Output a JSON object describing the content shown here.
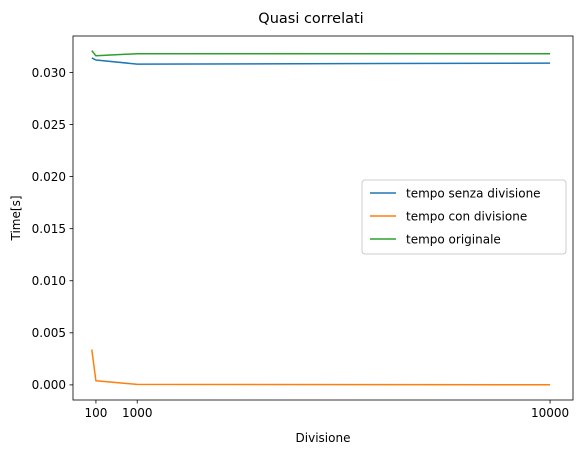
{
  "chart_data": {
    "type": "line",
    "title": "Quasi correlati",
    "xlabel": "Divisione",
    "ylabel": "Time[s]",
    "xlim": [
      -400,
      10500
    ],
    "ylim": [
      -0.00145,
      0.0335
    ],
    "xticks": [
      100,
      1000,
      10000
    ],
    "xtick_labels": [
      "100",
      "1000",
      "10000"
    ],
    "yticks": [
      0.0,
      0.005,
      0.01,
      0.015,
      0.02,
      0.025,
      0.03
    ],
    "ytick_labels": [
      "0.000",
      "0.005",
      "0.010",
      "0.015",
      "0.020",
      "0.025",
      "0.030"
    ],
    "grid": false,
    "legend_position": "center-right",
    "series": [
      {
        "name": "tempo senza divisione",
        "color": "#1f77b4",
        "x": [
          10,
          100,
          1000,
          10000
        ],
        "y": [
          0.0314,
          0.0312,
          0.0308,
          0.0309
        ]
      },
      {
        "name": "tempo con divisione",
        "color": "#ff7f0e",
        "x": [
          10,
          100,
          1000,
          10000
        ],
        "y": [
          0.0034,
          0.0004,
          5e-05,
          1e-05
        ]
      },
      {
        "name": "tempo originale",
        "color": "#2ca02c",
        "x": [
          10,
          100,
          1000,
          10000
        ],
        "y": [
          0.0321,
          0.0316,
          0.0318,
          0.0318
        ]
      }
    ]
  }
}
